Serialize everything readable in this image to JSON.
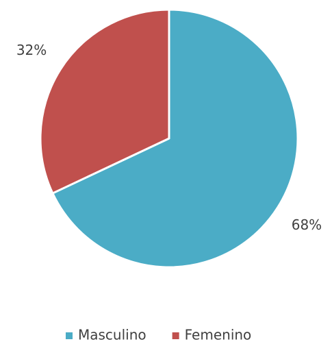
{
  "chart_data": {
    "type": "pie",
    "categories": [
      "Masculino",
      "Femenino"
    ],
    "values": [
      68,
      32
    ],
    "value_labels": [
      "68%",
      "32%"
    ],
    "colors": [
      "#4bacc6",
      "#c0504d"
    ],
    "legend": "bottom"
  }
}
